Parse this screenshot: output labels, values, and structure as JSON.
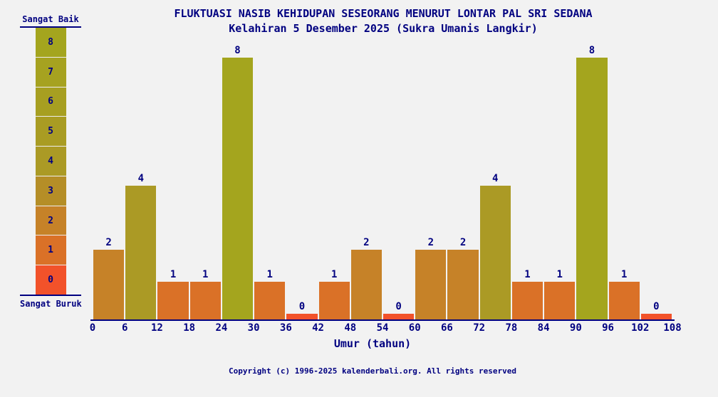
{
  "page": {
    "background": "#f2f2f2",
    "text_color": "#000080"
  },
  "chart_data": {
    "type": "bar",
    "title": "FLUKTUASI NASIB KEHIDUPAN SESEORANG MENURUT LONTAR PAL SRI SEDANA",
    "subtitle": "Kelahiran 5 Desember 2025 (Sukra Umanis Langkir)",
    "xlabel": "Umur (tahun)",
    "x_ticks": [
      "0",
      "6",
      "12",
      "18",
      "24",
      "30",
      "36",
      "42",
      "48",
      "54",
      "60",
      "66",
      "72",
      "78",
      "84",
      "90",
      "96",
      "102",
      "108"
    ],
    "categories": [
      "0-6",
      "6-12",
      "12-18",
      "18-24",
      "24-30",
      "30-36",
      "36-42",
      "42-48",
      "48-54",
      "54-60",
      "60-66",
      "66-72",
      "72-78",
      "78-84",
      "84-90",
      "90-96",
      "96-102",
      "102-108"
    ],
    "values": [
      2,
      4,
      1,
      1,
      8,
      1,
      0,
      1,
      2,
      0,
      2,
      2,
      4,
      1,
      1,
      8,
      1,
      0
    ],
    "ylim": [
      0,
      8
    ],
    "grid": false,
    "legend_position": "left",
    "value_colors": {
      "0": "#f2522a",
      "1": "#da7127",
      "2": "#c68228",
      "3": "#b58e27",
      "4": "#ab9a25",
      "5": "#a99c23",
      "6": "#a79f21",
      "7": "#a6a220",
      "8": "#a4a51e"
    },
    "legend": {
      "top_label": "Sangat Baik",
      "bottom_label": "Sangat Buruk",
      "levels": [
        8,
        7,
        6,
        5,
        4,
        3,
        2,
        1,
        0
      ]
    }
  },
  "footer": {
    "copyright": "Copyright (c) 1996-2025 kalenderbali.org. All rights reserved"
  }
}
